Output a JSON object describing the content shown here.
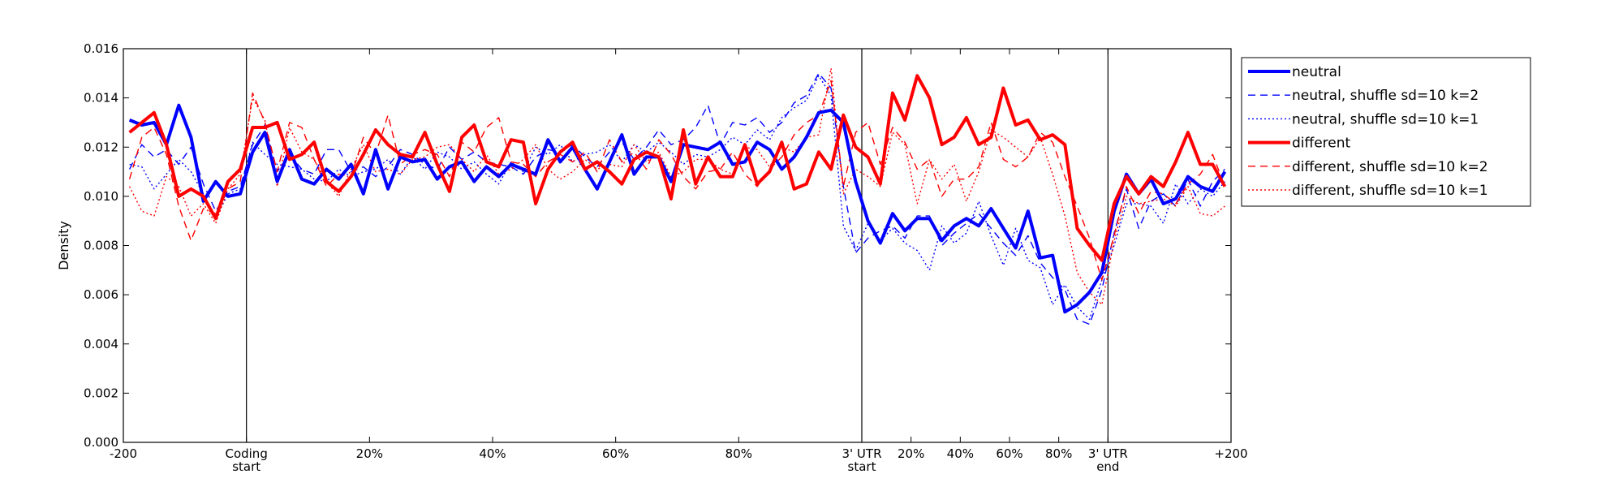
{
  "chart_data": {
    "type": "line",
    "title": "",
    "xlabel": "",
    "ylabel": "Density",
    "ylim": [
      0,
      0.016
    ],
    "yticks": [
      "0.000",
      "0.002",
      "0.004",
      "0.006",
      "0.008",
      "0.010",
      "0.012",
      "0.014",
      "0.016"
    ],
    "xticks": [
      {
        "pos": 0,
        "label": "-200"
      },
      {
        "pos": 20,
        "label": "Coding\nstart"
      },
      {
        "pos": 40,
        "label": "20%"
      },
      {
        "pos": 60,
        "label": "40%"
      },
      {
        "pos": 80,
        "label": "60%"
      },
      {
        "pos": 100,
        "label": "80%"
      },
      {
        "pos": 120,
        "label": "3' UTR\nstart"
      },
      {
        "pos": 128,
        "label": "20%"
      },
      {
        "pos": 136,
        "label": "40%"
      },
      {
        "pos": 144,
        "label": "60%"
      },
      {
        "pos": 152,
        "label": "80%"
      },
      {
        "pos": 160,
        "label": "3' UTR\nend"
      },
      {
        "pos": 180,
        "label": "+200"
      }
    ],
    "region_boundaries": [
      20,
      120,
      160
    ],
    "xlim": [
      0,
      180
    ],
    "grid": false,
    "legend_position": "outside-right",
    "series": [
      {
        "name": "neutral",
        "color": "#0000ff",
        "style": "solid",
        "width": 4,
        "values": [
          0.0131,
          0.0129,
          0.013,
          0.0121,
          0.0137,
          0.0124,
          0.0098,
          0.0106,
          0.01,
          0.0101,
          0.0118,
          0.0126,
          0.0106,
          0.0119,
          0.0107,
          0.0105,
          0.0111,
          0.0107,
          0.0113,
          0.0101,
          0.0119,
          0.0103,
          0.0116,
          0.0114,
          0.0115,
          0.0107,
          0.0112,
          0.0114,
          0.0106,
          0.0112,
          0.0108,
          0.0113,
          0.0111,
          0.0109,
          0.0123,
          0.0114,
          0.012,
          0.0111,
          0.0103,
          0.0114,
          0.0125,
          0.0109,
          0.0116,
          0.0116,
          0.0106,
          0.0121,
          0.012,
          0.0119,
          0.0122,
          0.0113,
          0.0114,
          0.0122,
          0.0119,
          0.0111,
          0.0116,
          0.0124,
          0.0134,
          0.0135,
          0.013,
          0.0106,
          0.009,
          0.0081,
          0.0093,
          0.0086,
          0.0091,
          0.0091,
          0.0082,
          0.0088,
          0.0091,
          0.0088,
          0.0095,
          0.0087,
          0.0079,
          0.0094,
          0.0075,
          0.0076,
          0.0053,
          0.0056,
          0.0061,
          0.0069,
          0.0094,
          0.0109,
          0.0101,
          0.0107,
          0.0097,
          0.0099,
          0.0108,
          0.0104,
          0.0102,
          0.011
        ]
      },
      {
        "name": "neutral, shuffle sd=10 k=2",
        "color": "#0000ff",
        "style": "dashed",
        "width": 1.4,
        "values": [
          0.0111,
          0.0121,
          0.0116,
          0.0119,
          0.0113,
          0.012,
          0.0105,
          0.0094,
          0.0102,
          0.0104,
          0.0121,
          0.0129,
          0.011,
          0.0117,
          0.0111,
          0.0109,
          0.0119,
          0.0119,
          0.011,
          0.0112,
          0.0108,
          0.0112,
          0.0119,
          0.0117,
          0.0113,
          0.0111,
          0.012,
          0.0115,
          0.0118,
          0.0114,
          0.0113,
          0.0112,
          0.0109,
          0.0116,
          0.0119,
          0.0118,
          0.0121,
          0.0116,
          0.0112,
          0.0118,
          0.0122,
          0.0115,
          0.012,
          0.0127,
          0.0121,
          0.0123,
          0.0128,
          0.0137,
          0.0121,
          0.013,
          0.0129,
          0.0132,
          0.0126,
          0.013,
          0.0138,
          0.0141,
          0.015,
          0.0144,
          0.0104,
          0.0077,
          0.0083,
          0.0086,
          0.0088,
          0.0083,
          0.0092,
          0.0092,
          0.008,
          0.0085,
          0.0089,
          0.0093,
          0.0087,
          0.0081,
          0.0076,
          0.0084,
          0.0073,
          0.0067,
          0.0062,
          0.005,
          0.0048,
          0.0062,
          0.0085,
          0.0103,
          0.0087,
          0.0098,
          0.0101,
          0.0096,
          0.0107,
          0.0096,
          0.0106,
          0.0111
        ]
      },
      {
        "name": "neutral, shuffle sd=10 k=1",
        "color": "#0000ff",
        "style": "dotted",
        "width": 1.4,
        "values": [
          0.0113,
          0.0112,
          0.0103,
          0.0109,
          0.0115,
          0.011,
          0.0101,
          0.0091,
          0.0101,
          0.0103,
          0.0122,
          0.0117,
          0.0113,
          0.0112,
          0.0111,
          0.0107,
          0.0106,
          0.0111,
          0.0108,
          0.011,
          0.0111,
          0.0115,
          0.0109,
          0.0116,
          0.0111,
          0.0118,
          0.0116,
          0.0111,
          0.0114,
          0.0109,
          0.0105,
          0.0114,
          0.011,
          0.012,
          0.0117,
          0.0121,
          0.0114,
          0.0117,
          0.0118,
          0.0121,
          0.0114,
          0.0121,
          0.0118,
          0.0122,
          0.0118,
          0.0113,
          0.0117,
          0.0116,
          0.0119,
          0.0124,
          0.0121,
          0.0127,
          0.0123,
          0.0132,
          0.0136,
          0.0139,
          0.0149,
          0.0141,
          0.0088,
          0.0078,
          0.0089,
          0.0082,
          0.0087,
          0.0081,
          0.0078,
          0.007,
          0.0088,
          0.0081,
          0.0085,
          0.0098,
          0.0084,
          0.0072,
          0.0087,
          0.0074,
          0.0071,
          0.0056,
          0.0064,
          0.0055,
          0.005,
          0.0066,
          0.008,
          0.0097,
          0.0097,
          0.0096,
          0.0089,
          0.0105,
          0.0097,
          0.0103,
          0.01,
          0.0106
        ]
      },
      {
        "name": "different",
        "color": "#ff0000",
        "style": "solid",
        "width": 4,
        "values": [
          0.0126,
          0.013,
          0.0134,
          0.0121,
          0.01,
          0.0103,
          0.01,
          0.0091,
          0.0106,
          0.0111,
          0.0128,
          0.0128,
          0.013,
          0.0115,
          0.0117,
          0.0122,
          0.0106,
          0.0102,
          0.0108,
          0.0117,
          0.0127,
          0.0121,
          0.0117,
          0.0116,
          0.0126,
          0.0113,
          0.0102,
          0.0124,
          0.0129,
          0.0114,
          0.0112,
          0.0123,
          0.0122,
          0.0097,
          0.0111,
          0.0118,
          0.0122,
          0.0111,
          0.0114,
          0.011,
          0.0105,
          0.0115,
          0.0118,
          0.0116,
          0.0099,
          0.0127,
          0.0105,
          0.0116,
          0.0108,
          0.0108,
          0.0121,
          0.0105,
          0.011,
          0.0122,
          0.0103,
          0.0105,
          0.0118,
          0.0111,
          0.0133,
          0.012,
          0.0116,
          0.0105,
          0.0142,
          0.0131,
          0.0149,
          0.014,
          0.0121,
          0.0124,
          0.0132,
          0.0121,
          0.0124,
          0.0144,
          0.0129,
          0.0131,
          0.0123,
          0.0125,
          0.0121,
          0.0087,
          0.008,
          0.0074,
          0.0097,
          0.0108,
          0.0101,
          0.0108,
          0.0104,
          0.0114,
          0.0126,
          0.0113,
          0.0113,
          0.0104
        ]
      },
      {
        "name": "different, shuffle sd=10 k=2",
        "color": "#ff0000",
        "style": "dashed",
        "width": 1.4,
        "values": [
          0.0107,
          0.0124,
          0.0128,
          0.0117,
          0.0096,
          0.0082,
          0.0095,
          0.0093,
          0.0103,
          0.0106,
          0.0142,
          0.013,
          0.011,
          0.013,
          0.0128,
          0.0115,
          0.0104,
          0.0109,
          0.0108,
          0.0124,
          0.0117,
          0.0133,
          0.0113,
          0.0117,
          0.0119,
          0.0117,
          0.0108,
          0.0122,
          0.0118,
          0.0128,
          0.0132,
          0.0114,
          0.0113,
          0.0108,
          0.0114,
          0.0117,
          0.0114,
          0.0118,
          0.011,
          0.0123,
          0.0114,
          0.0118,
          0.0111,
          0.0123,
          0.0117,
          0.0108,
          0.0103,
          0.011,
          0.0111,
          0.0118,
          0.0109,
          0.0104,
          0.0111,
          0.0116,
          0.0125,
          0.013,
          0.0133,
          0.0147,
          0.0104,
          0.0126,
          0.013,
          0.0113,
          0.0128,
          0.0122,
          0.0111,
          0.0115,
          0.01,
          0.0107,
          0.0107,
          0.0112,
          0.013,
          0.0115,
          0.0112,
          0.0116,
          0.0126,
          0.0122,
          0.0108,
          0.0096,
          0.0083,
          0.0066,
          0.0084,
          0.0104,
          0.0093,
          0.0102,
          0.0101,
          0.0097,
          0.0105,
          0.0109,
          0.0117,
          0.0104
        ]
      },
      {
        "name": "different, shuffle sd=10 k=1",
        "color": "#ff0000",
        "style": "dotted",
        "width": 1.4,
        "values": [
          0.0104,
          0.0094,
          0.0092,
          0.0108,
          0.0104,
          0.0092,
          0.0097,
          0.0089,
          0.0103,
          0.0109,
          0.014,
          0.0131,
          0.0104,
          0.0128,
          0.0118,
          0.0115,
          0.0106,
          0.01,
          0.0111,
          0.0121,
          0.011,
          0.0111,
          0.0109,
          0.0115,
          0.0116,
          0.012,
          0.0121,
          0.0115,
          0.011,
          0.0117,
          0.0109,
          0.0111,
          0.0115,
          0.0121,
          0.0111,
          0.0107,
          0.011,
          0.0115,
          0.0111,
          0.0113,
          0.0112,
          0.0121,
          0.0114,
          0.0118,
          0.0108,
          0.011,
          0.0115,
          0.0115,
          0.0111,
          0.0109,
          0.012,
          0.0119,
          0.0112,
          0.012,
          0.0118,
          0.0124,
          0.0125,
          0.0152,
          0.0101,
          0.0111,
          0.0108,
          0.0104,
          0.0126,
          0.0121,
          0.0097,
          0.0115,
          0.0107,
          0.0113,
          0.0098,
          0.011,
          0.0127,
          0.0124,
          0.012,
          0.0116,
          0.0124,
          0.0109,
          0.0092,
          0.0069,
          0.0061,
          0.0056,
          0.0082,
          0.01,
          0.0097,
          0.0098,
          0.0099,
          0.0096,
          0.0104,
          0.0093,
          0.0092,
          0.0096
        ]
      }
    ]
  }
}
